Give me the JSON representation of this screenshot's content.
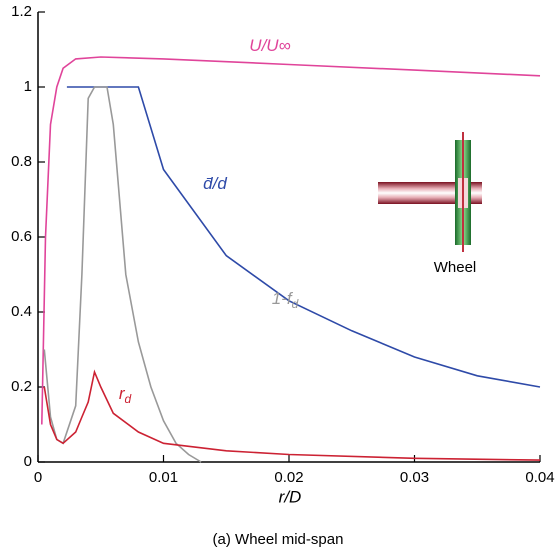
{
  "chart_data": {
    "type": "line",
    "caption": "(a) Wheel mid-span",
    "x_label": "r/D",
    "inset_label": "Wheel",
    "xlim": [
      0,
      0.04
    ],
    "xticks": [
      0,
      0.01,
      0.02,
      0.03,
      0.04
    ],
    "ylim": [
      0,
      1.2
    ],
    "yticks": [
      0,
      0.2,
      0.4,
      0.6,
      0.8,
      1,
      1.2
    ],
    "series": [
      {
        "name": "U/U∞",
        "color": "#e0449a",
        "x": [
          0.0003,
          0.0006,
          0.001,
          0.0015,
          0.002,
          0.003,
          0.005,
          0.01,
          0.02,
          0.03,
          0.04
        ],
        "values": [
          0.1,
          0.6,
          0.9,
          1.0,
          1.05,
          1.075,
          1.08,
          1.075,
          1.06,
          1.045,
          1.03
        ]
      },
      {
        "name": "d̄/d",
        "color": "#2e4aa8",
        "x": [
          0.0023,
          0.008,
          0.01,
          0.015,
          0.02,
          0.025,
          0.03,
          0.035,
          0.04
        ],
        "values": [
          1,
          1,
          0.78,
          0.55,
          0.43,
          0.35,
          0.28,
          0.23,
          0.2
        ]
      },
      {
        "name": "1-f",
        "subscript": "d",
        "color": "#999999",
        "x": [
          0.0005,
          0.001,
          0.0015,
          0.002,
          0.003,
          0.0035,
          0.004,
          0.0045,
          0.0055,
          0.006,
          0.007,
          0.008,
          0.009,
          0.01,
          0.011,
          0.012,
          0.013
        ],
        "values": [
          0.3,
          0.12,
          0.06,
          0.05,
          0.15,
          0.5,
          0.97,
          1.0,
          1.0,
          0.9,
          0.5,
          0.32,
          0.2,
          0.11,
          0.05,
          0.02,
          0
        ]
      },
      {
        "name": "r",
        "subscript": "d",
        "color": "#cc2233",
        "x": [
          0.0005,
          0.001,
          0.0015,
          0.002,
          0.003,
          0.0035,
          0.004,
          0.0045,
          0.005,
          0.006,
          0.008,
          0.01,
          0.015,
          0.02,
          0.03,
          0.04
        ],
        "values": [
          0.2,
          0.1,
          0.06,
          0.05,
          0.08,
          0.12,
          0.16,
          0.24,
          0.2,
          0.13,
          0.08,
          0.05,
          0.03,
          0.02,
          0.01,
          0.005
        ]
      }
    ]
  }
}
